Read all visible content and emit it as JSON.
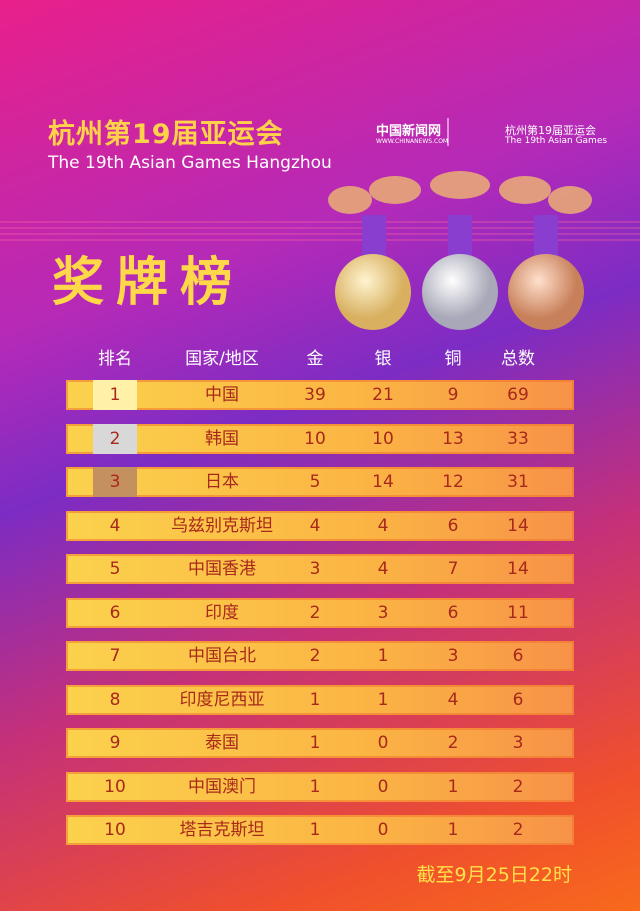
{
  "header": {
    "title": "杭州第19届亚运会",
    "subtitle": "The 19th Asian Games Hangzhou"
  },
  "logos": {
    "news_name": "中国新闻网",
    "news_url": "WWW.CHINANEWS.COM",
    "games_name": "杭州第19届亚运会",
    "games_en": "The 19th Asian Games"
  },
  "heading": "奖牌榜",
  "table": {
    "columns": [
      "排名",
      "国家/地区",
      "金",
      "银",
      "铜",
      "总数"
    ],
    "rows": [
      [
        1,
        "中国",
        39,
        21,
        9,
        69
      ],
      [
        2,
        "韩国",
        10,
        10,
        13,
        33
      ],
      [
        3,
        "日本",
        5,
        14,
        12,
        31
      ],
      [
        4,
        "乌兹别克斯坦",
        4,
        4,
        6,
        14
      ],
      [
        5,
        "中国香港",
        3,
        4,
        7,
        14
      ],
      [
        6,
        "印度",
        2,
        3,
        6,
        11
      ],
      [
        7,
        "中国台北",
        2,
        1,
        3,
        6
      ],
      [
        8,
        "印度尼西亚",
        1,
        1,
        4,
        6
      ],
      [
        9,
        "泰国",
        1,
        0,
        2,
        3
      ],
      [
        10,
        "中国澳门",
        1,
        0,
        1,
        2
      ],
      [
        10,
        "塔吉克斯坦",
        1,
        0,
        1,
        2
      ]
    ]
  },
  "footer": "截至9月25日22时"
}
